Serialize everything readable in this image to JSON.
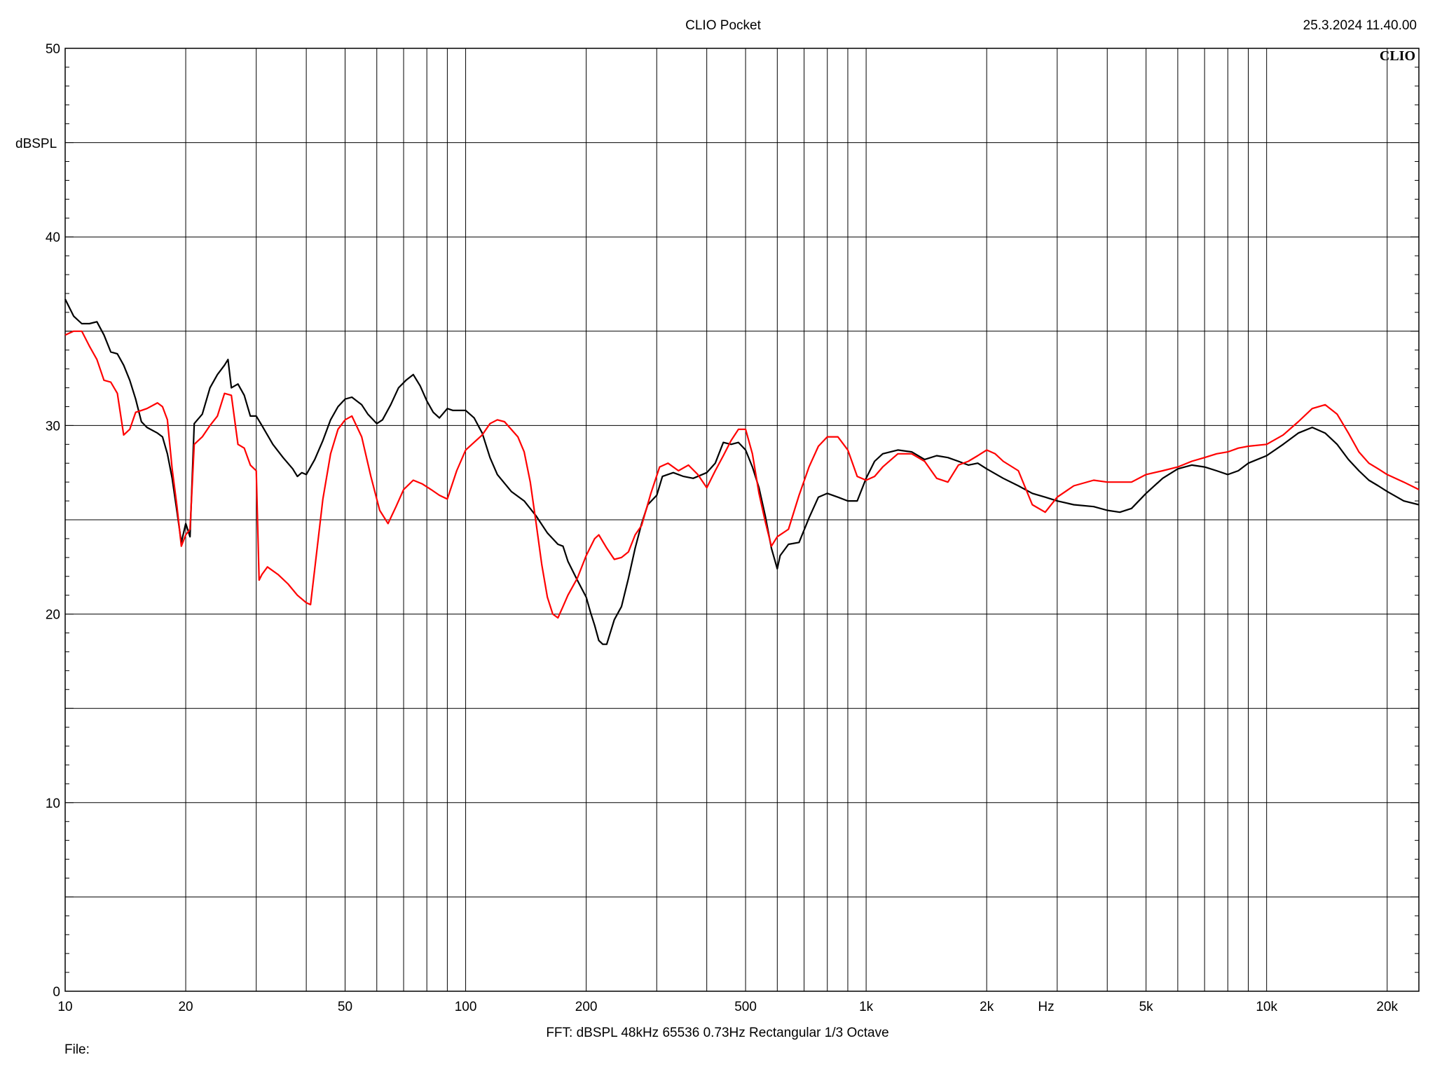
{
  "header": {
    "title": "CLIO Pocket",
    "timestamp": "25.3.2024 11.40.00",
    "logo_text": "CLIO"
  },
  "footer": {
    "settings": "FFT:  dBSPL  48kHz   65536  0.73Hz  Rectangular  1/3 Octave",
    "file_label": "File:"
  },
  "chart_data": {
    "type": "line",
    "xscale": "log",
    "xlim": [
      10,
      24000
    ],
    "ylim": [
      0,
      50
    ],
    "ylabel": "dBSPL",
    "xunit": "Hz",
    "grid": true,
    "x_ticks": [
      {
        "value": 10,
        "label": "10"
      },
      {
        "value": 20,
        "label": "20"
      },
      {
        "value": 50,
        "label": "50"
      },
      {
        "value": 100,
        "label": "100"
      },
      {
        "value": 200,
        "label": "200"
      },
      {
        "value": 500,
        "label": "500"
      },
      {
        "value": 1000,
        "label": "1k"
      },
      {
        "value": 2000,
        "label": "2k"
      },
      {
        "value": 5000,
        "label": "5k"
      },
      {
        "value": 10000,
        "label": "10k"
      },
      {
        "value": 20000,
        "label": "20k"
      }
    ],
    "y_ticks": [
      {
        "value": 0,
        "label": "0"
      },
      {
        "value": 10,
        "label": "10"
      },
      {
        "value": 20,
        "label": "20"
      },
      {
        "value": 30,
        "label": "30"
      },
      {
        "value": 40,
        "label": "40"
      },
      {
        "value": 50,
        "label": "50"
      }
    ],
    "y_minor": [
      5,
      15,
      25,
      35,
      45
    ],
    "series": [
      {
        "color": "#000000",
        "points": [
          [
            10,
            36.7
          ],
          [
            10.5,
            35.8
          ],
          [
            11,
            35.4
          ],
          [
            11.5,
            35.4
          ],
          [
            12,
            35.5
          ],
          [
            12.5,
            34.8
          ],
          [
            13,
            33.9
          ],
          [
            13.5,
            33.8
          ],
          [
            14,
            33.2
          ],
          [
            14.5,
            32.4
          ],
          [
            15,
            31.4
          ],
          [
            15.5,
            30.2
          ],
          [
            16,
            29.9
          ],
          [
            17,
            29.6
          ],
          [
            17.5,
            29.4
          ],
          [
            18,
            28.5
          ],
          [
            18.5,
            27.2
          ],
          [
            19,
            25.5
          ],
          [
            19.5,
            23.8
          ],
          [
            20,
            24.8
          ],
          [
            20.5,
            24.1
          ],
          [
            21,
            30.1
          ],
          [
            22,
            30.6
          ],
          [
            23,
            32.0
          ],
          [
            24,
            32.7
          ],
          [
            25,
            33.2
          ],
          [
            25.5,
            33.5
          ],
          [
            26,
            32.0
          ],
          [
            27,
            32.2
          ],
          [
            28,
            31.6
          ],
          [
            29,
            30.5
          ],
          [
            30,
            30.5
          ],
          [
            31,
            30.0
          ],
          [
            33,
            29.0
          ],
          [
            35,
            28.3
          ],
          [
            37,
            27.7
          ],
          [
            38,
            27.3
          ],
          [
            39,
            27.5
          ],
          [
            40,
            27.4
          ],
          [
            42,
            28.2
          ],
          [
            44,
            29.2
          ],
          [
            46,
            30.3
          ],
          [
            48,
            31.0
          ],
          [
            50,
            31.4
          ],
          [
            52,
            31.5
          ],
          [
            55,
            31.1
          ],
          [
            57,
            30.6
          ],
          [
            60,
            30.1
          ],
          [
            62,
            30.3
          ],
          [
            65,
            31.1
          ],
          [
            68,
            32.0
          ],
          [
            71,
            32.4
          ],
          [
            74,
            32.7
          ],
          [
            77,
            32.1
          ],
          [
            80,
            31.3
          ],
          [
            83,
            30.7
          ],
          [
            86,
            30.4
          ],
          [
            90,
            30.9
          ],
          [
            93,
            30.8
          ],
          [
            97,
            30.8
          ],
          [
            100,
            30.8
          ],
          [
            105,
            30.4
          ],
          [
            110,
            29.6
          ],
          [
            115,
            28.3
          ],
          [
            120,
            27.4
          ],
          [
            130,
            26.5
          ],
          [
            140,
            26.0
          ],
          [
            150,
            25.2
          ],
          [
            160,
            24.3
          ],
          [
            170,
            23.7
          ],
          [
            175,
            23.6
          ],
          [
            180,
            22.8
          ],
          [
            190,
            21.8
          ],
          [
            200,
            20.9
          ],
          [
            205,
            20.1
          ],
          [
            210,
            19.4
          ],
          [
            215,
            18.6
          ],
          [
            220,
            18.4
          ],
          [
            225,
            18.4
          ],
          [
            235,
            19.7
          ],
          [
            245,
            20.4
          ],
          [
            255,
            21.9
          ],
          [
            265,
            23.5
          ],
          [
            275,
            24.8
          ],
          [
            285,
            25.8
          ],
          [
            300,
            26.3
          ],
          [
            310,
            27.3
          ],
          [
            330,
            27.5
          ],
          [
            350,
            27.3
          ],
          [
            370,
            27.2
          ],
          [
            400,
            27.5
          ],
          [
            420,
            28.0
          ],
          [
            440,
            29.1
          ],
          [
            460,
            29.0
          ],
          [
            480,
            29.1
          ],
          [
            500,
            28.7
          ],
          [
            520,
            27.8
          ],
          [
            540,
            26.7
          ],
          [
            560,
            25.2
          ],
          [
            580,
            23.5
          ],
          [
            600,
            22.4
          ],
          [
            610,
            23.1
          ],
          [
            640,
            23.7
          ],
          [
            680,
            23.8
          ],
          [
            720,
            25.1
          ],
          [
            760,
            26.2
          ],
          [
            800,
            26.4
          ],
          [
            850,
            26.2
          ],
          [
            900,
            26.0
          ],
          [
            950,
            26.0
          ],
          [
            1000,
            27.2
          ],
          [
            1050,
            28.1
          ],
          [
            1100,
            28.5
          ],
          [
            1200,
            28.7
          ],
          [
            1300,
            28.6
          ],
          [
            1400,
            28.2
          ],
          [
            1500,
            28.4
          ],
          [
            1600,
            28.3
          ],
          [
            1700,
            28.1
          ],
          [
            1800,
            27.9
          ],
          [
            1900,
            28.0
          ],
          [
            2000,
            27.7
          ],
          [
            2200,
            27.2
          ],
          [
            2400,
            26.8
          ],
          [
            2600,
            26.4
          ],
          [
            2800,
            26.2
          ],
          [
            3000,
            26.0
          ],
          [
            3300,
            25.8
          ],
          [
            3700,
            25.7
          ],
          [
            4000,
            25.5
          ],
          [
            4300,
            25.4
          ],
          [
            4600,
            25.6
          ],
          [
            5000,
            26.4
          ],
          [
            5500,
            27.2
          ],
          [
            6000,
            27.7
          ],
          [
            6500,
            27.9
          ],
          [
            7000,
            27.8
          ],
          [
            7500,
            27.6
          ],
          [
            8000,
            27.4
          ],
          [
            8500,
            27.6
          ],
          [
            9000,
            28.0
          ],
          [
            10000,
            28.4
          ],
          [
            11000,
            29.0
          ],
          [
            12000,
            29.6
          ],
          [
            13000,
            29.9
          ],
          [
            14000,
            29.6
          ],
          [
            15000,
            29.0
          ],
          [
            16000,
            28.2
          ],
          [
            17000,
            27.6
          ],
          [
            18000,
            27.1
          ],
          [
            19000,
            26.8
          ],
          [
            20000,
            26.5
          ],
          [
            22000,
            26.0
          ],
          [
            24000,
            25.8
          ]
        ]
      },
      {
        "color": "#ff0000",
        "points": [
          [
            10,
            34.8
          ],
          [
            10.5,
            35.0
          ],
          [
            11,
            35.0
          ],
          [
            11.5,
            34.2
          ],
          [
            12,
            33.5
          ],
          [
            12.5,
            32.4
          ],
          [
            13,
            32.3
          ],
          [
            13.5,
            31.7
          ],
          [
            14,
            29.5
          ],
          [
            14.5,
            29.8
          ],
          [
            15,
            30.7
          ],
          [
            15.5,
            30.8
          ],
          [
            16,
            30.9
          ],
          [
            17,
            31.2
          ],
          [
            17.5,
            31.0
          ],
          [
            18,
            30.3
          ],
          [
            18.5,
            27.7
          ],
          [
            19,
            25.8
          ],
          [
            19.5,
            23.6
          ],
          [
            20,
            24.2
          ],
          [
            20.5,
            24.5
          ],
          [
            21,
            29.0
          ],
          [
            22,
            29.4
          ],
          [
            23,
            30.0
          ],
          [
            24,
            30.5
          ],
          [
            25,
            31.7
          ],
          [
            26,
            31.6
          ],
          [
            27,
            29.0
          ],
          [
            28,
            28.8
          ],
          [
            29,
            27.9
          ],
          [
            30,
            27.6
          ],
          [
            30.5,
            21.8
          ],
          [
            31,
            22.1
          ],
          [
            32,
            22.5
          ],
          [
            34,
            22.1
          ],
          [
            36,
            21.6
          ],
          [
            38,
            21.0
          ],
          [
            40,
            20.6
          ],
          [
            41,
            20.5
          ],
          [
            42,
            22.4
          ],
          [
            44,
            26.1
          ],
          [
            46,
            28.5
          ],
          [
            48,
            29.8
          ],
          [
            50,
            30.3
          ],
          [
            52,
            30.5
          ],
          [
            55,
            29.4
          ],
          [
            58,
            27.3
          ],
          [
            61,
            25.5
          ],
          [
            64,
            24.8
          ],
          [
            67,
            25.7
          ],
          [
            70,
            26.6
          ],
          [
            74,
            27.1
          ],
          [
            78,
            26.9
          ],
          [
            82,
            26.6
          ],
          [
            86,
            26.3
          ],
          [
            90,
            26.1
          ],
          [
            95,
            27.6
          ],
          [
            100,
            28.7
          ],
          [
            110,
            29.5
          ],
          [
            115,
            30.1
          ],
          [
            120,
            30.3
          ],
          [
            125,
            30.2
          ],
          [
            135,
            29.4
          ],
          [
            140,
            28.6
          ],
          [
            145,
            27.0
          ],
          [
            150,
            24.8
          ],
          [
            155,
            22.6
          ],
          [
            160,
            20.9
          ],
          [
            165,
            20.0
          ],
          [
            170,
            19.8
          ],
          [
            175,
            20.4
          ],
          [
            180,
            21.0
          ],
          [
            190,
            21.9
          ],
          [
            200,
            23.1
          ],
          [
            210,
            24.0
          ],
          [
            215,
            24.2
          ],
          [
            225,
            23.5
          ],
          [
            235,
            22.9
          ],
          [
            245,
            23.0
          ],
          [
            255,
            23.3
          ],
          [
            265,
            24.2
          ],
          [
            275,
            24.7
          ],
          [
            290,
            26.4
          ],
          [
            305,
            27.8
          ],
          [
            320,
            28.0
          ],
          [
            340,
            27.6
          ],
          [
            360,
            27.9
          ],
          [
            380,
            27.4
          ],
          [
            400,
            26.7
          ],
          [
            420,
            27.6
          ],
          [
            440,
            28.4
          ],
          [
            460,
            29.2
          ],
          [
            480,
            29.8
          ],
          [
            500,
            29.8
          ],
          [
            520,
            28.5
          ],
          [
            540,
            26.4
          ],
          [
            560,
            24.9
          ],
          [
            580,
            23.6
          ],
          [
            600,
            24.1
          ],
          [
            640,
            24.5
          ],
          [
            680,
            26.3
          ],
          [
            720,
            27.8
          ],
          [
            760,
            28.9
          ],
          [
            800,
            29.4
          ],
          [
            850,
            29.4
          ],
          [
            900,
            28.7
          ],
          [
            950,
            27.3
          ],
          [
            1000,
            27.1
          ],
          [
            1050,
            27.3
          ],
          [
            1100,
            27.8
          ],
          [
            1200,
            28.5
          ],
          [
            1300,
            28.5
          ],
          [
            1400,
            28.1
          ],
          [
            1500,
            27.2
          ],
          [
            1600,
            27.0
          ],
          [
            1700,
            27.9
          ],
          [
            1800,
            28.1
          ],
          [
            1900,
            28.4
          ],
          [
            2000,
            28.7
          ],
          [
            2100,
            28.5
          ],
          [
            2200,
            28.1
          ],
          [
            2400,
            27.6
          ],
          [
            2600,
            25.8
          ],
          [
            2800,
            25.4
          ],
          [
            3000,
            26.2
          ],
          [
            3300,
            26.8
          ],
          [
            3700,
            27.1
          ],
          [
            4000,
            27.0
          ],
          [
            4300,
            27.0
          ],
          [
            4600,
            27.0
          ],
          [
            5000,
            27.4
          ],
          [
            5500,
            27.6
          ],
          [
            6000,
            27.8
          ],
          [
            6500,
            28.1
          ],
          [
            7000,
            28.3
          ],
          [
            7500,
            28.5
          ],
          [
            8000,
            28.6
          ],
          [
            8500,
            28.8
          ],
          [
            9000,
            28.9
          ],
          [
            10000,
            29.0
          ],
          [
            11000,
            29.5
          ],
          [
            12000,
            30.2
          ],
          [
            13000,
            30.9
          ],
          [
            14000,
            31.1
          ],
          [
            15000,
            30.6
          ],
          [
            16000,
            29.6
          ],
          [
            17000,
            28.6
          ],
          [
            18000,
            28.0
          ],
          [
            19000,
            27.7
          ],
          [
            20000,
            27.4
          ],
          [
            22000,
            27.0
          ],
          [
            24000,
            26.6
          ]
        ]
      }
    ]
  }
}
